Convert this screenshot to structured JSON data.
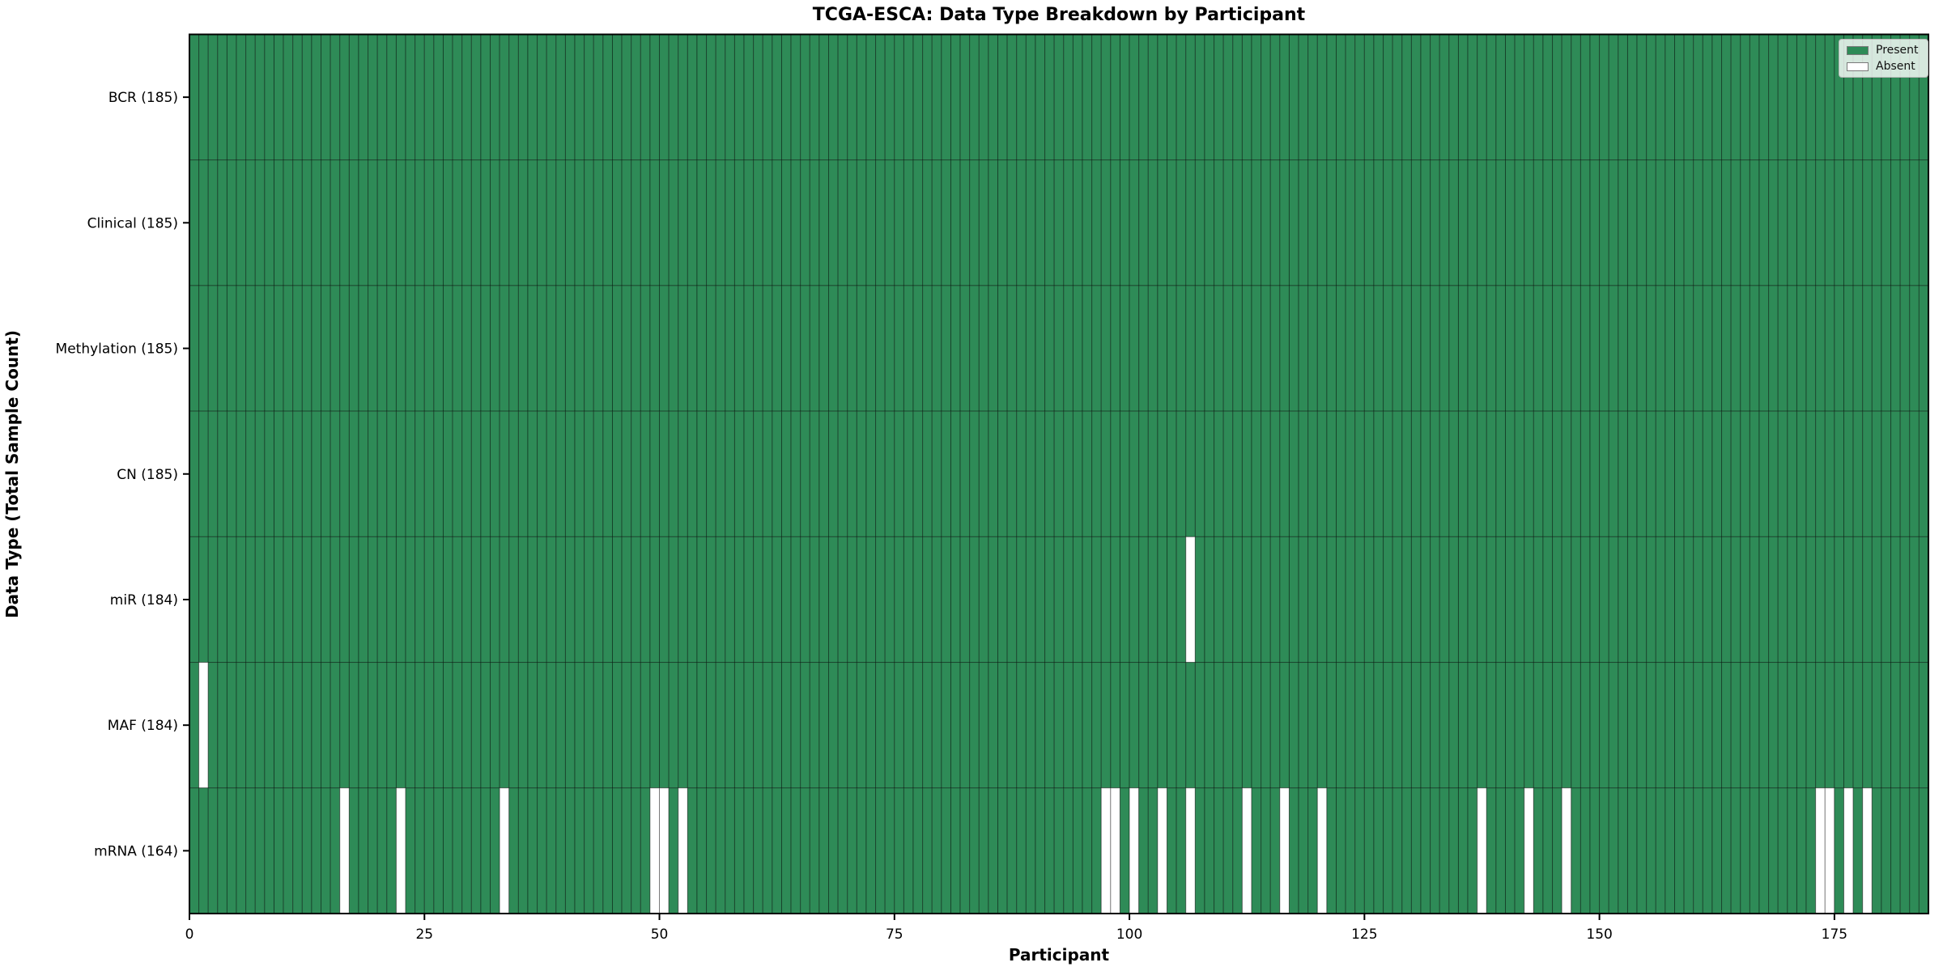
{
  "chart_data": {
    "type": "heatmap",
    "title": "TCGA-ESCA: Data Type Breakdown by Participant",
    "xlabel": "Participant",
    "ylabel": "Data Type (Total Sample Count)",
    "n_participants": 185,
    "x_ticks": [
      0,
      25,
      50,
      75,
      100,
      125,
      150,
      175
    ],
    "legend": [
      {
        "label": "Present",
        "key": "present"
      },
      {
        "label": "Absent",
        "key": "absent"
      }
    ],
    "colors": {
      "present": "#2e8b57",
      "absent": "#ffffff",
      "cell_edge": "rgba(0,0,0,0.4)",
      "spine": "#000000"
    },
    "rows": [
      {
        "label": "BCR (185)",
        "data_type": "BCR",
        "total_samples": 185,
        "absent_participants": []
      },
      {
        "label": "Clinical (185)",
        "data_type": "Clinical",
        "total_samples": 185,
        "absent_participants": []
      },
      {
        "label": "Methylation (185)",
        "data_type": "Methylation",
        "total_samples": 185,
        "absent_participants": []
      },
      {
        "label": "CN (185)",
        "data_type": "CN",
        "total_samples": 185,
        "absent_participants": []
      },
      {
        "label": "miR (184)",
        "data_type": "miR",
        "total_samples": 184,
        "absent_participants": [
          106
        ]
      },
      {
        "label": "MAF (184)",
        "data_type": "MAF",
        "total_samples": 184,
        "absent_participants": [
          1
        ]
      },
      {
        "label": "mRNA (164)",
        "data_type": "mRNA",
        "total_samples": 164,
        "absent_participants": [
          16,
          22,
          33,
          49,
          50,
          52,
          97,
          98,
          100,
          103,
          106,
          112,
          116,
          120,
          137,
          142,
          146,
          173,
          174,
          176,
          178
        ]
      }
    ]
  }
}
